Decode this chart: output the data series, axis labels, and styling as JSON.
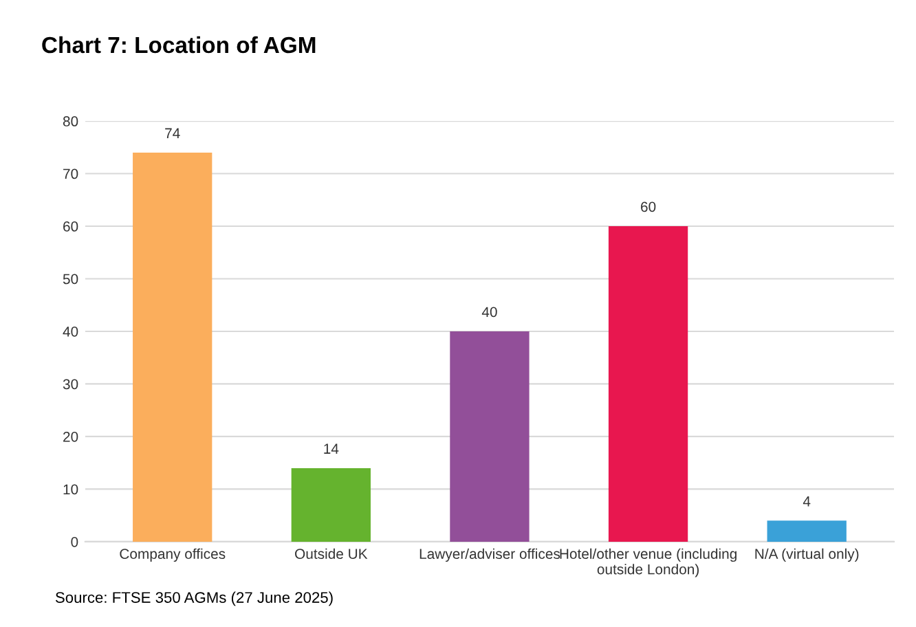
{
  "chart_data": {
    "type": "bar",
    "title": "Chart 7: Location of AGM",
    "categories": [
      "Company offices",
      "Outside UK",
      "Lawyer/adviser offices",
      "Hotel/other venue (including\noutside London)",
      "N/A (virtual only)"
    ],
    "values": [
      74,
      14,
      40,
      60,
      4
    ],
    "colors": [
      "#fbae5c",
      "#65b32e",
      "#924f99",
      "#e8174f",
      "#3aa1d8"
    ],
    "ylim": [
      0,
      80
    ],
    "yticks": [
      0,
      10,
      20,
      30,
      40,
      50,
      60,
      70,
      80
    ],
    "grid": "y",
    "data_labels": true,
    "annotations": [
      "Source: FTSE 350 AGMs (27 June 2025)"
    ]
  }
}
